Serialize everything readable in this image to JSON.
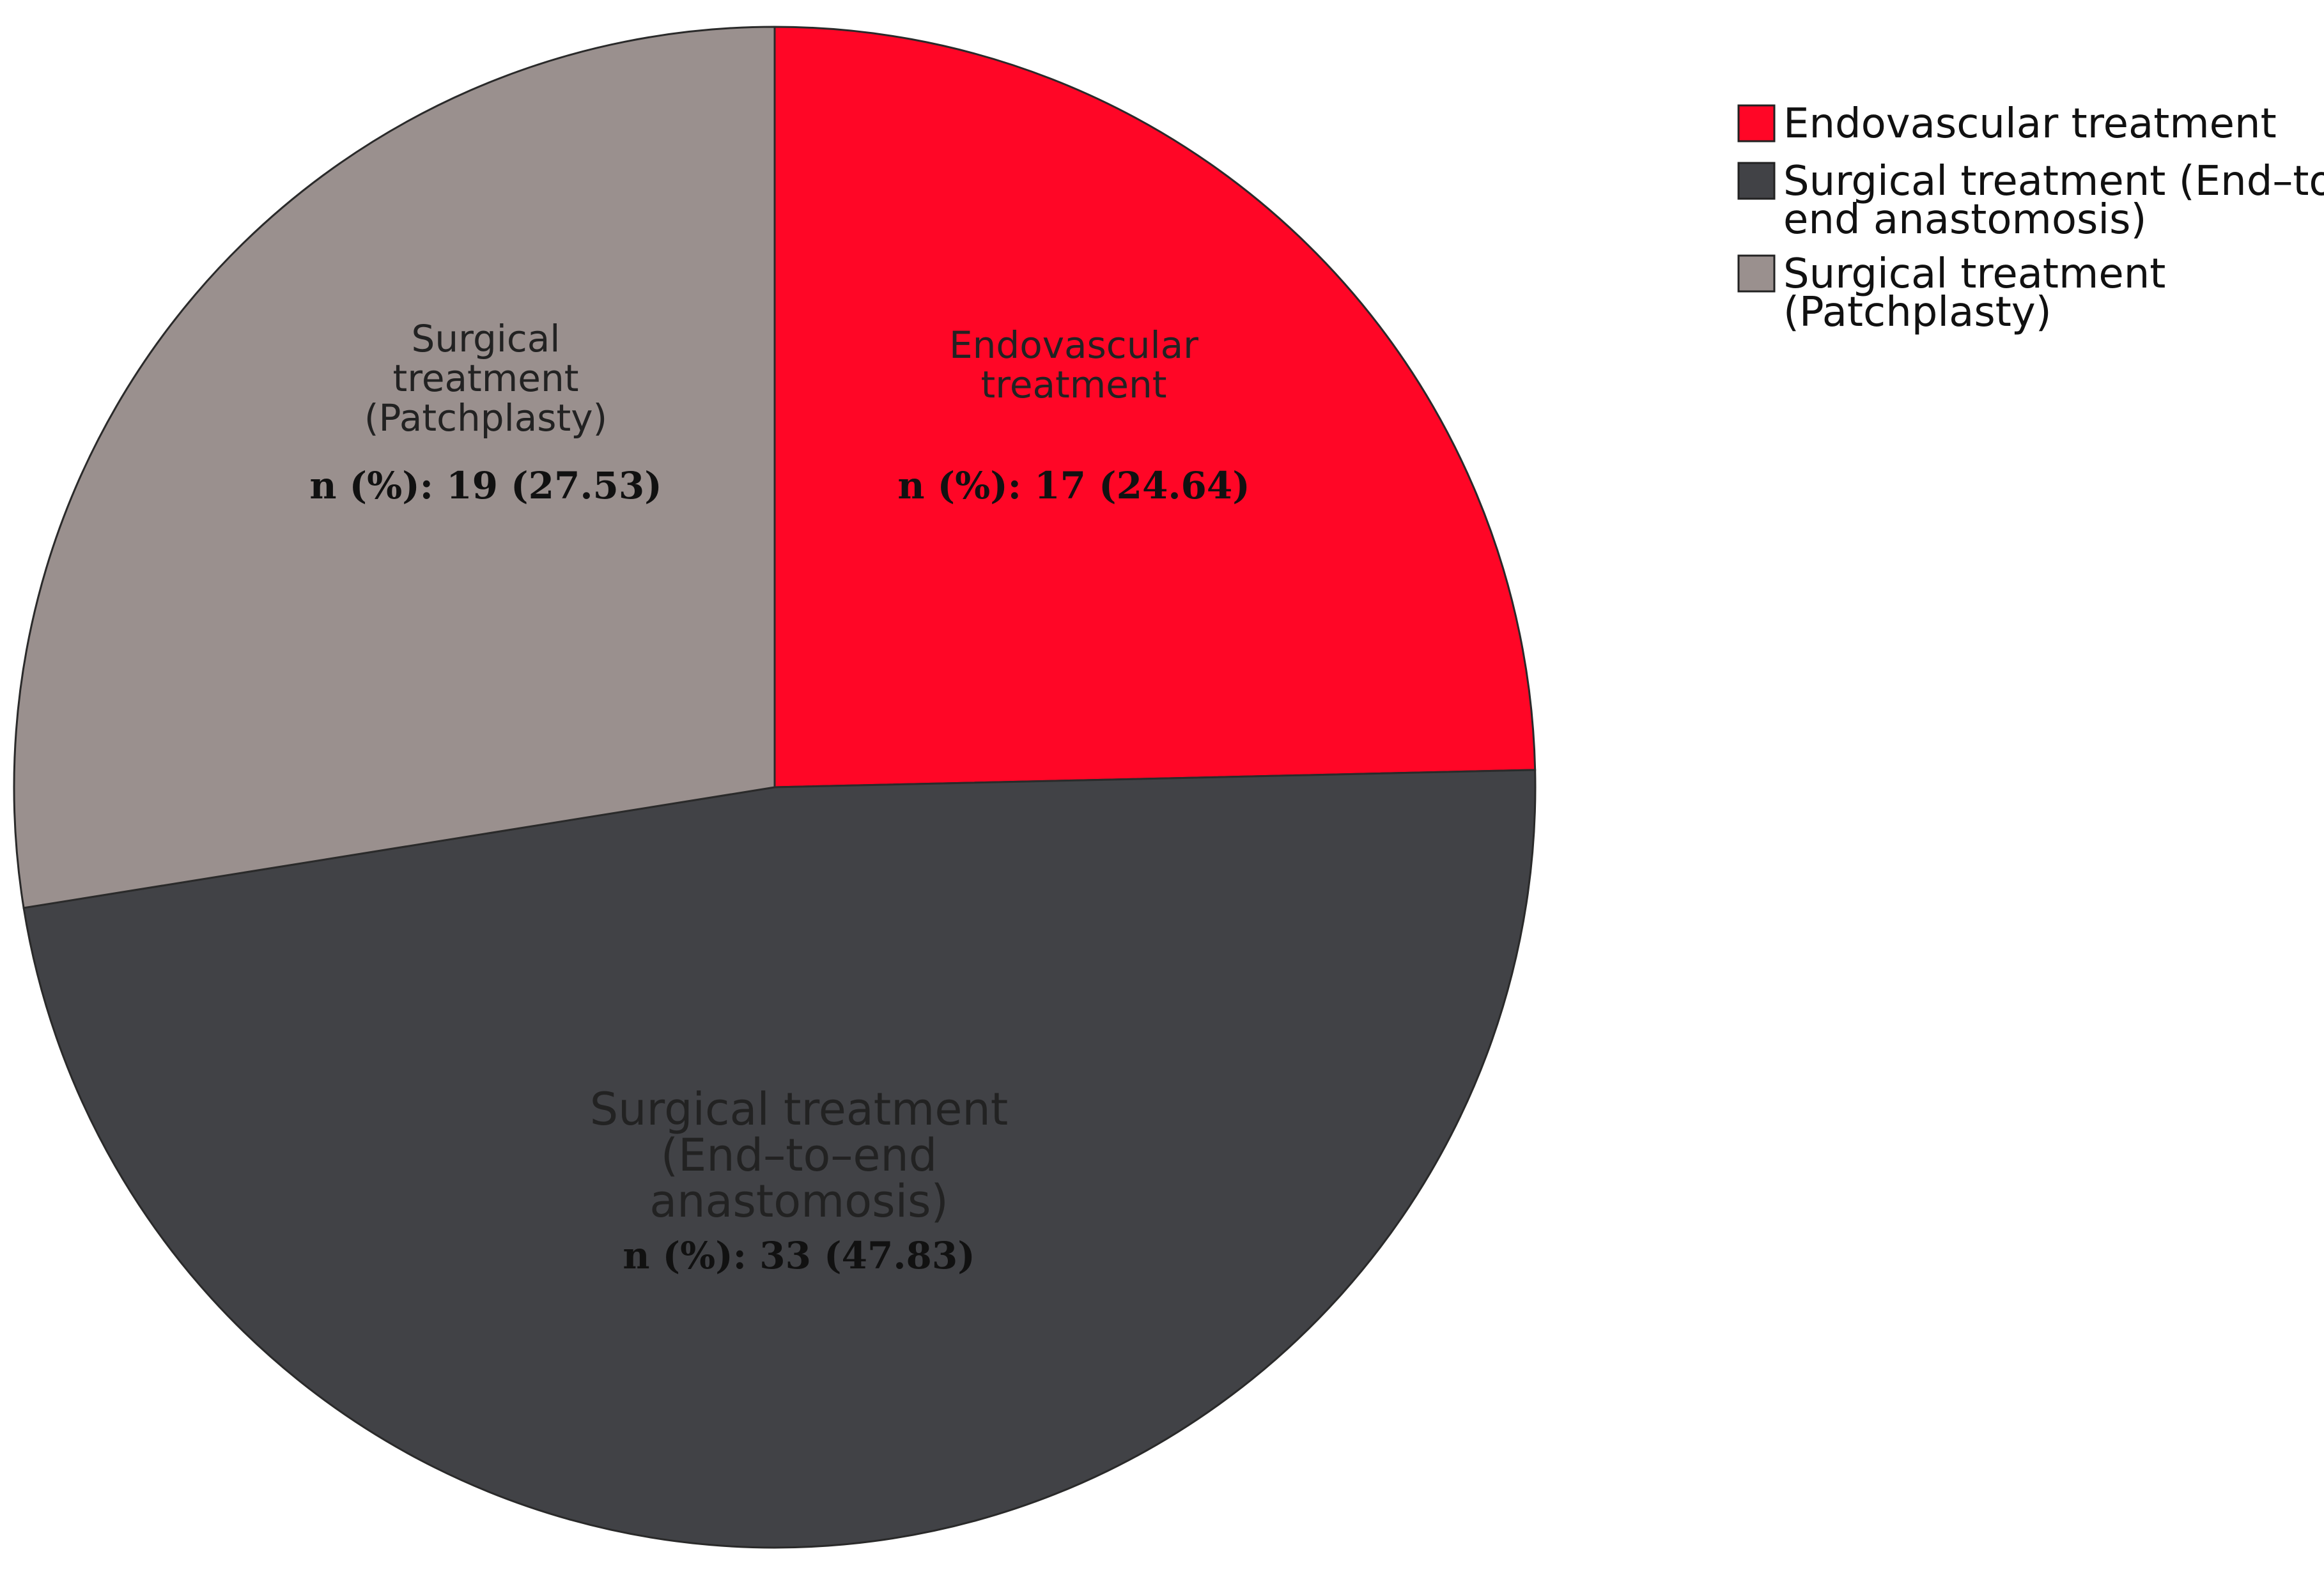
{
  "chart_data": {
    "type": "pie",
    "legend_position": "top-right",
    "slices": [
      {
        "name": "Endovascular treatment",
        "label_lines": [
          "Endovascular",
          "treatment"
        ],
        "value_text": "n (%): 17 (24.64)",
        "count": 17,
        "percent": 24.64,
        "color": "#ff0626"
      },
      {
        "name": "Surgical treatment (End-to-end anastomosis)",
        "label_lines": [
          "Surgical treatment",
          "(End–to–end",
          "anastomosis)"
        ],
        "value_text": "n (%): 33 (47.83)",
        "count": 33,
        "percent": 47.83,
        "color": "#414246"
      },
      {
        "name": "Surgical treatment (Patchplasty)",
        "label_lines": [
          "Surgical",
          "treatment",
          "(Patchplasty)"
        ],
        "value_text": "n (%): 19 (27.53)",
        "count": 19,
        "percent": 27.53,
        "color": "#9a908e"
      }
    ],
    "legend": [
      {
        "lines": [
          "Endovascular treatment"
        ],
        "color": "#ff0626"
      },
      {
        "lines": [
          "Surgical treatment (End–to–",
          "end anastomosis)"
        ],
        "color": "#414246"
      },
      {
        "lines": [
          "Surgical treatment",
          "(Patchplasty)"
        ],
        "color": "#9a908e"
      }
    ]
  }
}
